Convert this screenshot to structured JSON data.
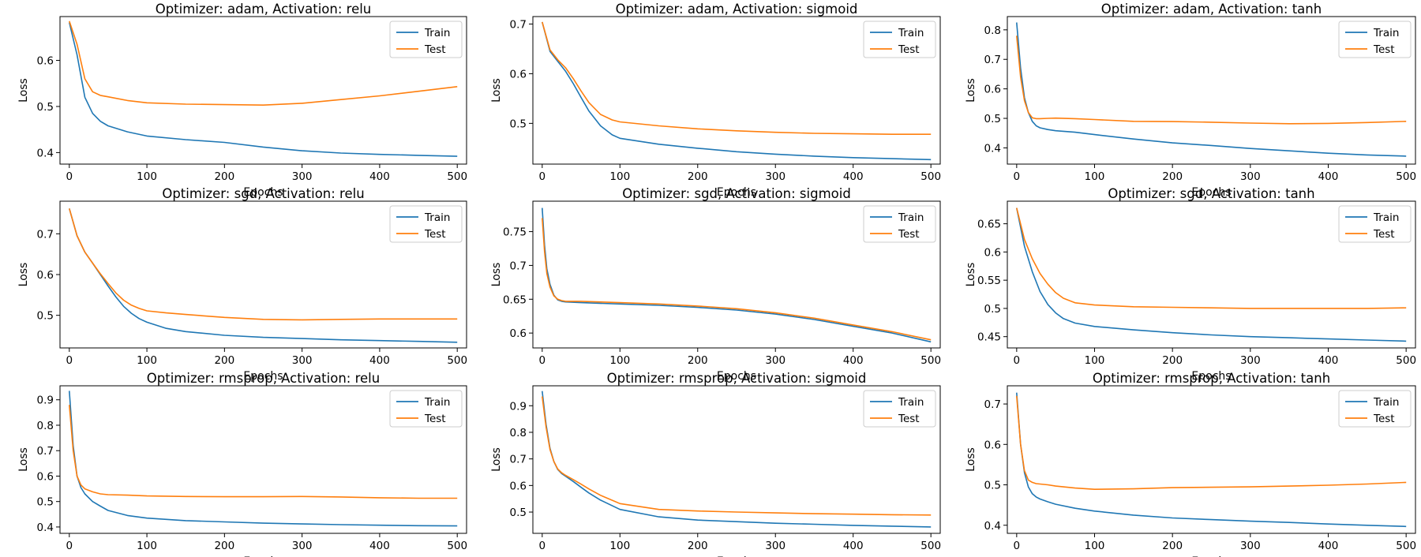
{
  "colors": {
    "train": "#1f77b4",
    "test": "#ff7f0e"
  },
  "chart_data": [
    {
      "type": "line",
      "title": "Optimizer: adam, Activation: relu",
      "xlabel": "Epochs",
      "ylabel": "Loss",
      "xlim": [
        -12,
        512
      ],
      "ylim": [
        0.375,
        0.695
      ],
      "xticks": [
        0,
        100,
        200,
        300,
        400,
        500
      ],
      "yticks": [
        0.4,
        0.5,
        0.6
      ],
      "x": [
        0,
        10,
        20,
        30,
        40,
        50,
        75,
        100,
        150,
        200,
        250,
        300,
        350,
        400,
        450,
        500
      ],
      "series": [
        {
          "name": "Train",
          "values": [
            0.682,
            0.612,
            0.52,
            0.485,
            0.468,
            0.458,
            0.445,
            0.436,
            0.428,
            0.422,
            0.412,
            0.404,
            0.399,
            0.396,
            0.394,
            0.392
          ]
        },
        {
          "name": "Test",
          "values": [
            0.685,
            0.635,
            0.56,
            0.532,
            0.524,
            0.521,
            0.513,
            0.508,
            0.505,
            0.504,
            0.503,
            0.507,
            0.515,
            0.523,
            0.533,
            0.543
          ]
        }
      ],
      "legend": "upper right"
    },
    {
      "type": "line",
      "title": "Optimizer: adam, Activation: sigmoid",
      "xlabel": "Epochs",
      "ylabel": "Loss",
      "xlim": [
        -12,
        512
      ],
      "ylim": [
        0.418,
        0.715
      ],
      "xticks": [
        0,
        100,
        200,
        300,
        400,
        500
      ],
      "yticks": [
        0.5,
        0.6,
        0.7
      ],
      "x": [
        0,
        10,
        20,
        30,
        40,
        50,
        60,
        75,
        90,
        100,
        150,
        200,
        250,
        300,
        350,
        400,
        450,
        500
      ],
      "series": [
        {
          "name": "Train",
          "values": [
            0.704,
            0.645,
            0.625,
            0.605,
            0.58,
            0.552,
            0.525,
            0.495,
            0.477,
            0.47,
            0.458,
            0.45,
            0.443,
            0.438,
            0.434,
            0.431,
            0.429,
            0.427
          ]
        },
        {
          "name": "Test",
          "values": [
            0.704,
            0.648,
            0.628,
            0.612,
            0.59,
            0.565,
            0.542,
            0.518,
            0.507,
            0.503,
            0.495,
            0.489,
            0.485,
            0.482,
            0.48,
            0.479,
            0.478,
            0.478
          ]
        }
      ],
      "legend": "upper right"
    },
    {
      "type": "line",
      "title": "Optimizer: adam, Activation: tanh",
      "xlabel": "Epochs",
      "ylabel": "Loss",
      "xlim": [
        -12,
        512
      ],
      "ylim": [
        0.345,
        0.845
      ],
      "xticks": [
        0,
        100,
        200,
        300,
        400,
        500
      ],
      "yticks": [
        0.4,
        0.5,
        0.6,
        0.7,
        0.8
      ],
      "x": [
        0,
        5,
        10,
        15,
        20,
        25,
        30,
        40,
        50,
        75,
        100,
        150,
        200,
        250,
        300,
        350,
        400,
        450,
        500
      ],
      "series": [
        {
          "name": "Train",
          "values": [
            0.825,
            0.67,
            0.57,
            0.52,
            0.49,
            0.475,
            0.468,
            0.462,
            0.458,
            0.453,
            0.445,
            0.43,
            0.417,
            0.408,
            0.398,
            0.39,
            0.382,
            0.376,
            0.372
          ]
        },
        {
          "name": "Test",
          "values": [
            0.78,
            0.64,
            0.56,
            0.52,
            0.502,
            0.499,
            0.499,
            0.5,
            0.501,
            0.499,
            0.496,
            0.49,
            0.489,
            0.487,
            0.484,
            0.482,
            0.483,
            0.486,
            0.49
          ]
        }
      ],
      "legend": "upper right"
    },
    {
      "type": "line",
      "title": "Optimizer: sgd, Activation: relu",
      "xlabel": "Epochs",
      "ylabel": "Loss",
      "xlim": [
        -12,
        512
      ],
      "ylim": [
        0.42,
        0.78
      ],
      "xticks": [
        0,
        100,
        200,
        300,
        400,
        500
      ],
      "yticks": [
        0.5,
        0.6,
        0.7
      ],
      "x": [
        0,
        10,
        20,
        30,
        40,
        50,
        60,
        70,
        80,
        90,
        100,
        125,
        150,
        200,
        250,
        300,
        350,
        400,
        450,
        500
      ],
      "series": [
        {
          "name": "Train",
          "values": [
            0.762,
            0.695,
            0.655,
            0.628,
            0.6,
            0.572,
            0.545,
            0.522,
            0.505,
            0.492,
            0.483,
            0.468,
            0.46,
            0.451,
            0.446,
            0.443,
            0.44,
            0.438,
            0.436,
            0.434
          ]
        },
        {
          "name": "Test",
          "values": [
            0.762,
            0.695,
            0.655,
            0.628,
            0.602,
            0.578,
            0.555,
            0.537,
            0.525,
            0.517,
            0.511,
            0.506,
            0.502,
            0.495,
            0.49,
            0.489,
            0.49,
            0.491,
            0.491,
            0.491
          ]
        }
      ],
      "legend": "upper right"
    },
    {
      "type": "line",
      "title": "Optimizer: sgd, Activation: sigmoid",
      "xlabel": "Epochs",
      "ylabel": "Loss",
      "xlim": [
        -12,
        512
      ],
      "ylim": [
        0.578,
        0.795
      ],
      "xticks": [
        0,
        100,
        200,
        300,
        400,
        500
      ],
      "yticks": [
        0.6,
        0.65,
        0.7,
        0.75
      ],
      "x": [
        0,
        3,
        6,
        10,
        15,
        20,
        25,
        30,
        50,
        100,
        150,
        200,
        250,
        300,
        350,
        400,
        450,
        500
      ],
      "series": [
        {
          "name": "Train",
          "values": [
            0.785,
            0.73,
            0.695,
            0.672,
            0.656,
            0.649,
            0.647,
            0.646,
            0.645,
            0.643,
            0.641,
            0.638,
            0.634,
            0.628,
            0.62,
            0.61,
            0.6,
            0.587
          ]
        },
        {
          "name": "Test",
          "values": [
            0.77,
            0.72,
            0.688,
            0.668,
            0.655,
            0.65,
            0.648,
            0.647,
            0.647,
            0.645,
            0.643,
            0.64,
            0.636,
            0.63,
            0.622,
            0.612,
            0.602,
            0.59
          ]
        }
      ],
      "legend": "upper right"
    },
    {
      "type": "line",
      "title": "Optimizer: sgd, Activation: tanh",
      "xlabel": "Epochs",
      "ylabel": "Loss",
      "xlim": [
        -12,
        512
      ],
      "ylim": [
        0.43,
        0.69
      ],
      "xticks": [
        0,
        100,
        200,
        300,
        400,
        500
      ],
      "yticks": [
        0.45,
        0.5,
        0.55,
        0.6,
        0.65
      ],
      "x": [
        0,
        10,
        20,
        30,
        40,
        50,
        60,
        75,
        100,
        150,
        200,
        250,
        300,
        350,
        400,
        450,
        500
      ],
      "series": [
        {
          "name": "Train",
          "values": [
            0.678,
            0.61,
            0.565,
            0.53,
            0.507,
            0.492,
            0.482,
            0.474,
            0.468,
            0.462,
            0.457,
            0.453,
            0.45,
            0.448,
            0.446,
            0.444,
            0.442
          ]
        },
        {
          "name": "Test",
          "values": [
            0.678,
            0.622,
            0.588,
            0.562,
            0.543,
            0.528,
            0.518,
            0.51,
            0.506,
            0.503,
            0.502,
            0.501,
            0.5,
            0.5,
            0.5,
            0.5,
            0.501
          ]
        }
      ],
      "legend": "upper right"
    },
    {
      "type": "line",
      "title": "Optimizer: rmsprop, Activation: relu",
      "xlabel": "Epochs",
      "ylabel": "Loss",
      "xlim": [
        -12,
        512
      ],
      "ylim": [
        0.375,
        0.955
      ],
      "xticks": [
        0,
        100,
        200,
        300,
        400,
        500
      ],
      "yticks": [
        0.4,
        0.5,
        0.6,
        0.7,
        0.8,
        0.9
      ],
      "x": [
        0,
        5,
        10,
        15,
        20,
        30,
        40,
        50,
        75,
        100,
        150,
        200,
        250,
        300,
        350,
        400,
        450,
        500
      ],
      "series": [
        {
          "name": "Train",
          "values": [
            0.935,
            0.72,
            0.6,
            0.555,
            0.53,
            0.5,
            0.482,
            0.465,
            0.445,
            0.435,
            0.425,
            0.42,
            0.415,
            0.412,
            0.409,
            0.407,
            0.405,
            0.404
          ]
        },
        {
          "name": "Test",
          "values": [
            0.88,
            0.7,
            0.6,
            0.565,
            0.55,
            0.538,
            0.53,
            0.527,
            0.525,
            0.522,
            0.52,
            0.519,
            0.519,
            0.52,
            0.518,
            0.515,
            0.513,
            0.513
          ]
        }
      ],
      "legend": "upper right"
    },
    {
      "type": "line",
      "title": "Optimizer: rmsprop, Activation: sigmoid",
      "xlabel": "Epochs",
      "ylabel": "Loss",
      "xlim": [
        -12,
        512
      ],
      "ylim": [
        0.42,
        0.975
      ],
      "xticks": [
        0,
        100,
        200,
        300,
        400,
        500
      ],
      "yticks": [
        0.5,
        0.6,
        0.7,
        0.8,
        0.9
      ],
      "x": [
        0,
        5,
        10,
        15,
        20,
        25,
        30,
        40,
        50,
        60,
        75,
        100,
        150,
        200,
        250,
        300,
        350,
        400,
        450,
        500
      ],
      "series": [
        {
          "name": "Train",
          "values": [
            0.955,
            0.83,
            0.74,
            0.69,
            0.66,
            0.645,
            0.635,
            0.615,
            0.593,
            0.572,
            0.545,
            0.51,
            0.482,
            0.47,
            0.464,
            0.458,
            0.454,
            0.45,
            0.447,
            0.444
          ]
        },
        {
          "name": "Test",
          "values": [
            0.935,
            0.82,
            0.735,
            0.69,
            0.662,
            0.648,
            0.638,
            0.622,
            0.605,
            0.587,
            0.563,
            0.532,
            0.51,
            0.504,
            0.5,
            0.497,
            0.494,
            0.492,
            0.49,
            0.489
          ]
        }
      ],
      "legend": "upper right"
    },
    {
      "type": "line",
      "title": "Optimizer: rmsprop, Activation: tanh",
      "xlabel": "Epochs",
      "ylabel": "Loss",
      "xlim": [
        -12,
        512
      ],
      "ylim": [
        0.38,
        0.745
      ],
      "xticks": [
        0,
        100,
        200,
        300,
        400,
        500
      ],
      "yticks": [
        0.4,
        0.5,
        0.6,
        0.7
      ],
      "x": [
        0,
        5,
        10,
        15,
        20,
        25,
        30,
        40,
        50,
        75,
        100,
        150,
        200,
        250,
        300,
        350,
        400,
        450,
        500
      ],
      "series": [
        {
          "name": "Train",
          "values": [
            0.728,
            0.6,
            0.53,
            0.495,
            0.478,
            0.47,
            0.465,
            0.458,
            0.452,
            0.442,
            0.435,
            0.425,
            0.418,
            0.414,
            0.41,
            0.407,
            0.403,
            0.4,
            0.397
          ]
        },
        {
          "name": "Test",
          "values": [
            0.72,
            0.6,
            0.535,
            0.512,
            0.506,
            0.503,
            0.502,
            0.5,
            0.497,
            0.492,
            0.489,
            0.49,
            0.493,
            0.494,
            0.495,
            0.497,
            0.499,
            0.502,
            0.506
          ]
        }
      ],
      "legend": "upper right"
    }
  ]
}
